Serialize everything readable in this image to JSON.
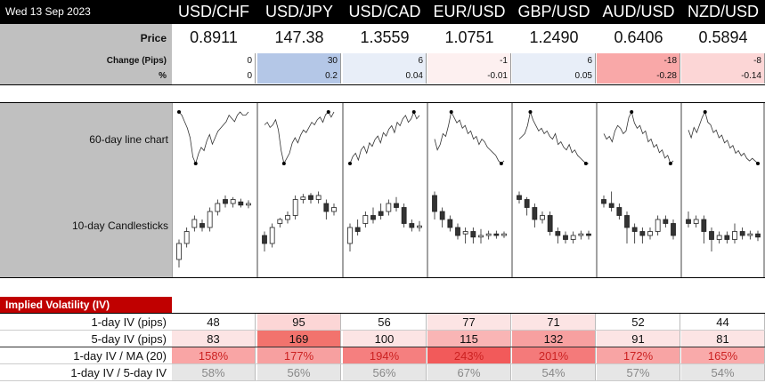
{
  "header": {
    "date": "Wed 13 Sep 2023",
    "pairs": [
      "USD/CHF",
      "USD/JPY",
      "USD/CAD",
      "EUR/USD",
      "GBP/USD",
      "AUD/USD",
      "NZD/USD"
    ]
  },
  "rows": {
    "price_label": "Price",
    "change_label": "Change (Pips)",
    "pct_label": "%",
    "prices": [
      "0.8911",
      "147.38",
      "1.3559",
      "1.0751",
      "1.2490",
      "0.6406",
      "0.5894"
    ],
    "changes": [
      "0",
      "30",
      "6",
      "-1",
      "6",
      "-18",
      "-8"
    ],
    "pcts": [
      "0",
      "0.2",
      "0.04",
      "-0.01",
      "0.05",
      "-0.28",
      "-0.14"
    ],
    "change_colors": [
      "#ffffff",
      "#b4c7e7",
      "#e8eef8",
      "#fdf0f0",
      "#e8eef8",
      "#f9a8a8",
      "#fcd6d6"
    ]
  },
  "charts": {
    "line_label": "60-day line chart",
    "candle_label": "10-day Candlesticks"
  },
  "iv": {
    "title": "Implied Volatility (IV)",
    "rows": [
      {
        "label": "1-day IV (pips)",
        "values": [
          "48",
          "95",
          "56",
          "77",
          "71",
          "52",
          "44"
        ],
        "colors": [
          "#ffffff",
          "#fcd6d6",
          "#ffffff",
          "#fce4e4",
          "#fce4e4",
          "#ffffff",
          "#ffffff"
        ]
      },
      {
        "label": "5-day IV (pips)",
        "values": [
          "83",
          "169",
          "100",
          "115",
          "132",
          "91",
          "81"
        ],
        "colors": [
          "#fce4e4",
          "#f2736d",
          "#fce4e4",
          "#f9b5b5",
          "#f7a0a0",
          "#fce4e4",
          "#fce4e4"
        ]
      },
      {
        "label": "1-day IV / MA (20)",
        "values": [
          "158%",
          "177%",
          "194%",
          "243%",
          "201%",
          "172%",
          "165%"
        ],
        "colors": [
          "#f9a5a5",
          "#f7a0a0",
          "#f57f7f",
          "#f25a5a",
          "#f47a7a",
          "#f8a4a4",
          "#f9aaaa"
        ],
        "textcolor": "#cc2222"
      },
      {
        "label": "1-day IV / 5-day IV",
        "values": [
          "58%",
          "56%",
          "56%",
          "67%",
          "54%",
          "57%",
          "54%"
        ],
        "colors": [
          "#e6e6e6",
          "#e6e6e6",
          "#e6e6e6",
          "#e6e6e6",
          "#e6e6e6",
          "#e6e6e6",
          "#e6e6e6"
        ],
        "textcolor": "#888888"
      }
    ]
  },
  "chart_data": {
    "type": "line",
    "line_series": [
      {
        "values": [
          0.6,
          0.5,
          0.3,
          0.1,
          -0.2,
          -0.8,
          -1.0,
          -0.7,
          -0.5,
          -0.6,
          -0.3,
          -0.1,
          -0.4,
          -0.2,
          0.0,
          0.1,
          0.2,
          0.3,
          0.5,
          0.4,
          0.3,
          0.5,
          0.6,
          0.5,
          0.5,
          0.6
        ]
      },
      {
        "values": [
          0.5,
          0.6,
          0.4,
          0.5,
          0.7,
          0.3,
          -0.5,
          -1.0,
          -0.8,
          -0.6,
          -0.2,
          0.0,
          -0.2,
          0.1,
          0.3,
          0.2,
          0.4,
          0.6,
          0.5,
          0.7,
          0.8,
          0.6,
          0.9,
          1.0,
          0.8,
          1.0
        ]
      },
      {
        "values": [
          -0.5,
          -0.3,
          -0.2,
          -0.4,
          -0.1,
          0.0,
          -0.2,
          0.1,
          0.0,
          0.2,
          0.3,
          0.1,
          0.4,
          0.3,
          0.5,
          0.6,
          0.4,
          0.7,
          0.6,
          0.8,
          0.9,
          0.7,
          0.8,
          1.0,
          0.8,
          0.9
        ]
      },
      {
        "values": [
          0.0,
          -0.4,
          -0.2,
          0.2,
          0.1,
          0.5,
          1.0,
          0.8,
          0.6,
          0.7,
          0.4,
          0.5,
          0.2,
          0.3,
          0.0,
          0.1,
          -0.2,
          0.0,
          -0.1,
          -0.3,
          -0.4,
          -0.5,
          -0.6,
          -0.8,
          -0.9,
          -0.8
        ]
      },
      {
        "values": [
          0.0,
          0.1,
          0.2,
          0.5,
          1.0,
          0.7,
          0.5,
          0.3,
          0.4,
          0.2,
          0.3,
          0.1,
          0.0,
          0.2,
          -0.2,
          -0.1,
          -0.3,
          -0.4,
          -0.2,
          -0.5,
          -0.4,
          -0.6,
          -0.7,
          -0.8,
          -0.9,
          -0.9
        ]
      },
      {
        "values": [
          0.2,
          0.0,
          0.1,
          -0.1,
          0.3,
          0.5,
          0.4,
          0.2,
          0.3,
          0.8,
          1.0,
          0.6,
          0.4,
          0.5,
          0.2,
          0.3,
          -0.1,
          0.0,
          -0.3,
          -0.2,
          -0.5,
          -0.4,
          -0.7,
          -0.6,
          -0.9,
          -0.8
        ]
      },
      {
        "values": [
          0.3,
          0.0,
          0.4,
          0.2,
          0.5,
          0.8,
          1.0,
          0.6,
          0.5,
          0.2,
          0.3,
          0.0,
          0.1,
          -0.2,
          -0.1,
          -0.4,
          -0.3,
          -0.6,
          -0.5,
          -0.7,
          -0.6,
          -0.8,
          -0.9,
          -0.8,
          -0.9,
          -1.0
        ]
      }
    ],
    "candle_series": [
      [
        [
          0.1,
          0.3,
          0.0,
          0.35
        ],
        [
          0.3,
          0.45,
          0.25,
          0.5
        ],
        [
          0.5,
          0.6,
          0.45,
          0.65
        ],
        [
          0.55,
          0.5,
          0.45,
          0.6
        ],
        [
          0.5,
          0.7,
          0.45,
          0.75
        ],
        [
          0.7,
          0.8,
          0.65,
          0.85
        ],
        [
          0.85,
          0.8,
          0.75,
          0.9
        ],
        [
          0.8,
          0.85,
          0.75,
          0.88
        ],
        [
          0.82,
          0.78,
          0.75,
          0.86
        ],
        [
          0.78,
          0.8,
          0.74,
          0.84
        ]
      ],
      [
        [
          0.4,
          0.3,
          0.2,
          0.45
        ],
        [
          0.3,
          0.5,
          0.25,
          0.55
        ],
        [
          0.55,
          0.6,
          0.5,
          0.62
        ],
        [
          0.6,
          0.65,
          0.55,
          0.7
        ],
        [
          0.65,
          0.85,
          0.6,
          0.9
        ],
        [
          0.85,
          0.88,
          0.8,
          0.92
        ],
        [
          0.9,
          0.85,
          0.8,
          0.93
        ],
        [
          0.85,
          0.9,
          0.8,
          0.95
        ],
        [
          0.8,
          0.7,
          0.6,
          0.85
        ],
        [
          0.7,
          0.75,
          0.65,
          0.8
        ]
      ],
      [
        [
          0.3,
          0.5,
          0.2,
          0.55
        ],
        [
          0.5,
          0.45,
          0.4,
          0.6
        ],
        [
          0.55,
          0.65,
          0.5,
          0.7
        ],
        [
          0.65,
          0.6,
          0.55,
          0.75
        ],
        [
          0.7,
          0.65,
          0.6,
          0.8
        ],
        [
          0.7,
          0.8,
          0.65,
          0.85
        ],
        [
          0.8,
          0.75,
          0.7,
          0.88
        ],
        [
          0.75,
          0.55,
          0.5,
          0.8
        ],
        [
          0.55,
          0.5,
          0.45,
          0.6
        ],
        [
          0.5,
          0.52,
          0.45,
          0.58
        ]
      ],
      [
        [
          0.9,
          0.7,
          0.6,
          0.95
        ],
        [
          0.7,
          0.6,
          0.5,
          0.75
        ],
        [
          0.6,
          0.5,
          0.45,
          0.65
        ],
        [
          0.5,
          0.4,
          0.35,
          0.55
        ],
        [
          0.42,
          0.45,
          0.3,
          0.5
        ],
        [
          0.45,
          0.38,
          0.3,
          0.5
        ],
        [
          0.38,
          0.4,
          0.3,
          0.48
        ],
        [
          0.4,
          0.42,
          0.35,
          0.46
        ],
        [
          0.42,
          0.4,
          0.36,
          0.46
        ],
        [
          0.4,
          0.42,
          0.37,
          0.45
        ]
      ],
      [
        [
          0.9,
          0.85,
          0.8,
          0.95
        ],
        [
          0.85,
          0.75,
          0.65,
          0.88
        ],
        [
          0.75,
          0.6,
          0.5,
          0.8
        ],
        [
          0.6,
          0.65,
          0.55,
          0.7
        ],
        [
          0.65,
          0.45,
          0.4,
          0.7
        ],
        [
          0.45,
          0.4,
          0.3,
          0.5
        ],
        [
          0.4,
          0.35,
          0.3,
          0.45
        ],
        [
          0.35,
          0.4,
          0.3,
          0.45
        ],
        [
          0.4,
          0.42,
          0.35,
          0.46
        ],
        [
          0.42,
          0.4,
          0.35,
          0.46
        ]
      ],
      [
        [
          0.85,
          0.8,
          0.75,
          0.9
        ],
        [
          0.8,
          0.75,
          0.7,
          0.95
        ],
        [
          0.75,
          0.65,
          0.6,
          0.8
        ],
        [
          0.65,
          0.5,
          0.3,
          0.7
        ],
        [
          0.5,
          0.45,
          0.3,
          0.55
        ],
        [
          0.45,
          0.4,
          0.3,
          0.5
        ],
        [
          0.4,
          0.45,
          0.35,
          0.5
        ],
        [
          0.45,
          0.6,
          0.4,
          0.65
        ],
        [
          0.6,
          0.55,
          0.5,
          0.65
        ],
        [
          0.55,
          0.4,
          0.35,
          0.6
        ]
      ],
      [
        [
          0.6,
          0.55,
          0.5,
          0.7
        ],
        [
          0.55,
          0.6,
          0.5,
          0.65
        ],
        [
          0.6,
          0.45,
          0.3,
          0.65
        ],
        [
          0.45,
          0.35,
          0.2,
          0.5
        ],
        [
          0.35,
          0.4,
          0.3,
          0.45
        ],
        [
          0.4,
          0.35,
          0.3,
          0.45
        ],
        [
          0.35,
          0.45,
          0.3,
          0.55
        ],
        [
          0.45,
          0.4,
          0.35,
          0.5
        ],
        [
          0.4,
          0.42,
          0.35,
          0.46
        ],
        [
          0.42,
          0.38,
          0.33,
          0.46
        ]
      ]
    ]
  }
}
